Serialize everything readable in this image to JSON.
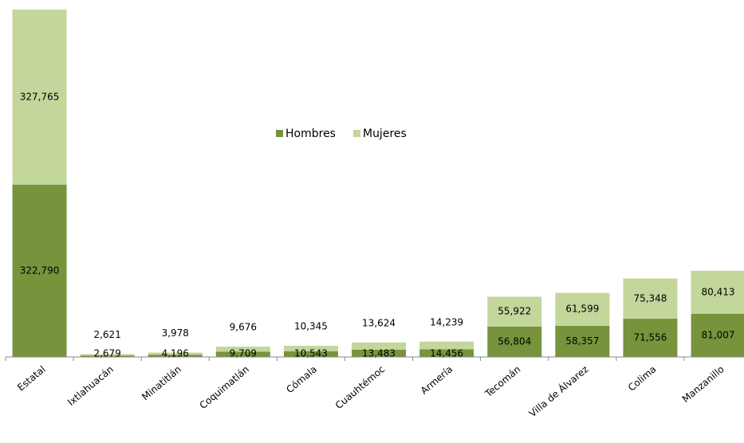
{
  "chart_data": {
    "type": "stacked_bar",
    "categories": [
      "Estatal",
      "Ixtlahuacán",
      "Minatitlán",
      "Coquimatlán",
      "Cómala",
      "Cuauhtémoc",
      "Armería",
      "Tecomán",
      "Villa de Álvarez",
      "Colima",
      "Manzanillo"
    ],
    "series": [
      {
        "name": "Hombres",
        "color": "#77933c",
        "values": [
          322790,
          2679,
          4196,
          9709,
          10543,
          13483,
          14456,
          56804,
          58357,
          71556,
          81007
        ],
        "value_labels": [
          "322,790",
          "2,679",
          "4,196",
          "9,709",
          "10,543",
          "13,483",
          "14,456",
          "56,804",
          "58,357",
          "71,556",
          "81,007"
        ]
      },
      {
        "name": "Mujeres",
        "color": "#c3d69b",
        "values": [
          327765,
          2621,
          3978,
          9676,
          10345,
          13624,
          14239,
          55922,
          61599,
          75348,
          80413
        ],
        "value_labels": [
          "327,765",
          "2,621",
          "3,978",
          "9,676",
          "10,345",
          "13,624",
          "14,239",
          "55,922",
          "61,599",
          "75,348",
          "80,413"
        ]
      }
    ],
    "legend": "center"
  }
}
